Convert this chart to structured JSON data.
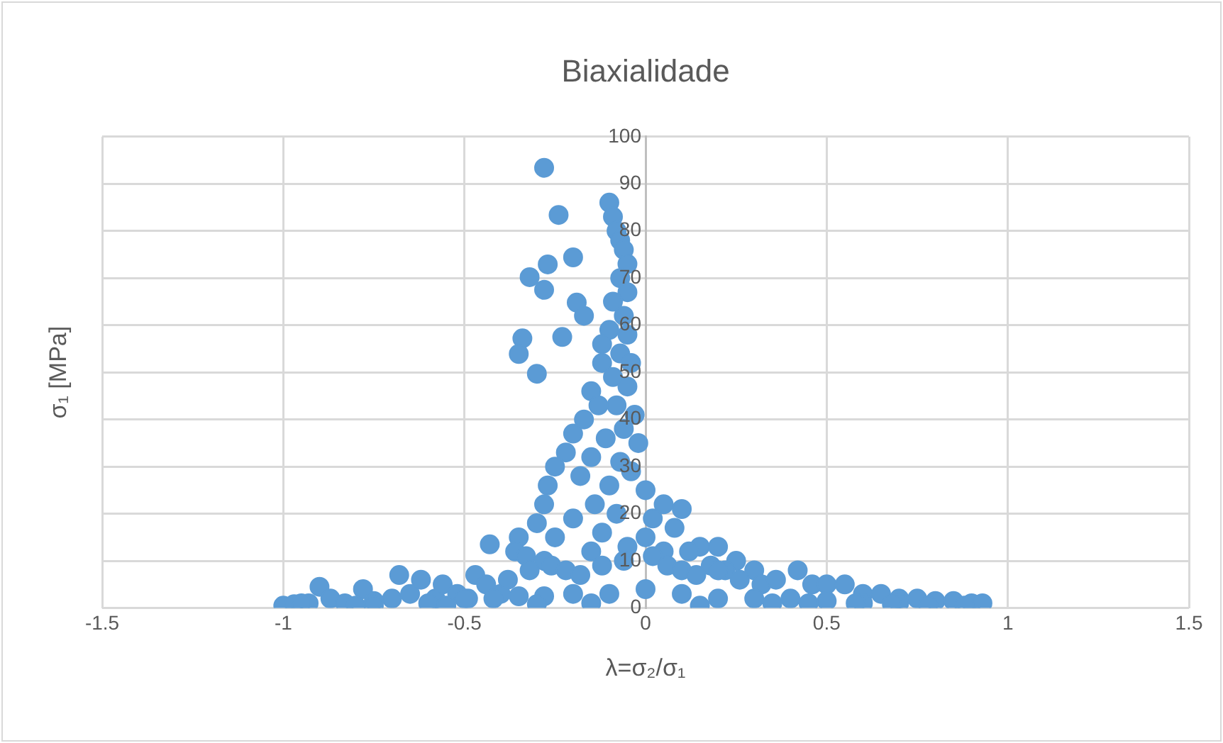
{
  "chart_data": {
    "type": "scatter",
    "title": "Biaxialidade",
    "xlabel": "λ=σ₂/σ₁",
    "ylabel": "σ₁ [MPa]",
    "xlim": [
      -1.5,
      1.5
    ],
    "ylim": [
      0,
      100
    ],
    "xticks": [
      -1.5,
      -1,
      -0.5,
      0,
      0.5,
      1,
      1.5
    ],
    "yticks": [
      0,
      10,
      20,
      30,
      40,
      50,
      60,
      70,
      80,
      90,
      100
    ],
    "grid": true,
    "legend": false,
    "marker": "circle",
    "series": [
      {
        "color": "#5b9bd5",
        "x": [
          -0.28,
          -0.24,
          -0.27,
          -0.32,
          -0.28,
          -0.2,
          -0.34,
          -0.35,
          -0.3,
          -0.23,
          -0.19,
          -0.17,
          -0.1,
          -0.09,
          -0.08,
          -0.07,
          -0.06,
          -0.05,
          -0.07,
          -0.05,
          -0.09,
          -0.06,
          -0.1,
          -0.05,
          -0.12,
          -0.07,
          -0.04,
          -0.12,
          -0.09,
          -0.05,
          -0.15,
          -0.13,
          -0.08,
          -0.03,
          -0.17,
          -0.06,
          -0.2,
          -0.11,
          -0.02,
          -0.22,
          -0.15,
          -0.07,
          -0.25,
          -0.04,
          -0.18,
          -0.27,
          -0.1,
          0,
          -0.28,
          -0.14,
          0.05,
          0.1,
          -0.3,
          -0.2,
          -0.08,
          0.02,
          0.08,
          0.15,
          0.2,
          -0.35,
          -0.25,
          -0.12,
          0,
          0.12,
          0.25,
          -0.43,
          -0.36,
          -0.33,
          -0.28,
          -0.15,
          -0.05,
          0.05,
          0.18,
          0.22,
          0.3,
          -1,
          -0.97,
          -0.93,
          -0.9,
          -0.87,
          -0.83,
          -0.78,
          -0.75,
          -0.7,
          -0.68,
          -0.65,
          -0.62,
          -0.58,
          -0.56,
          -0.52,
          -0.49,
          -0.47,
          -0.44,
          -0.4,
          -0.38,
          -0.32,
          -0.26,
          -0.22,
          -0.18,
          -0.12,
          -0.06,
          0.02,
          0.06,
          0.1,
          0.14,
          0.2,
          0.26,
          0.32,
          0.36,
          0.42,
          0.46,
          0.5,
          0.55,
          0.6,
          0.65,
          0.7,
          0.75,
          0.8,
          0.85,
          0.9,
          0.93,
          -0.95,
          -0.75,
          -0.6,
          -0.5,
          -0.42,
          -0.35,
          -0.28,
          -0.2,
          -0.1,
          0,
          0.1,
          0.2,
          0.3,
          0.4,
          0.5,
          0.6,
          0.7,
          0.88,
          -0.8,
          -0.55,
          -0.3,
          -0.15,
          0.15,
          0.35,
          0.45,
          0.58,
          0.68,
          0.78
        ],
        "values": [
          93.4,
          83.4,
          72.9,
          70.2,
          67.5,
          74.4,
          57.2,
          53.9,
          49.7,
          57.5,
          64.8,
          62,
          86,
          83,
          80,
          78,
          76,
          73,
          70,
          67,
          65,
          62,
          59,
          58,
          56,
          54,
          52,
          52,
          49,
          47,
          46,
          43,
          43,
          41,
          40,
          38,
          37,
          36,
          35,
          33,
          32,
          31,
          30,
          29,
          28,
          26,
          26,
          25,
          22,
          22,
          22,
          21,
          18,
          19,
          20,
          19,
          17,
          13,
          13,
          15,
          15,
          16,
          15,
          12,
          10,
          13.5,
          12,
          11,
          10,
          12,
          13,
          12,
          9,
          8,
          8,
          0.5,
          0.8,
          1,
          4.5,
          2,
          1,
          4,
          1.5,
          2,
          7,
          3,
          6,
          2,
          5,
          3,
          2,
          7,
          5,
          3,
          6,
          8,
          9,
          8,
          7,
          9,
          10,
          11,
          9,
          8,
          7,
          8,
          6,
          5,
          6,
          8,
          5,
          5,
          5,
          3,
          3,
          2,
          2,
          1.5,
          1.5,
          1,
          1,
          1,
          0.5,
          1,
          2,
          2,
          2.5,
          2.5,
          3,
          3,
          4,
          3,
          2,
          2,
          2,
          1.5,
          1,
          1,
          0.5,
          0.5,
          0.5,
          0.8,
          1,
          0.5,
          1,
          1,
          1,
          0.8,
          0.5
        ]
      }
    ]
  }
}
